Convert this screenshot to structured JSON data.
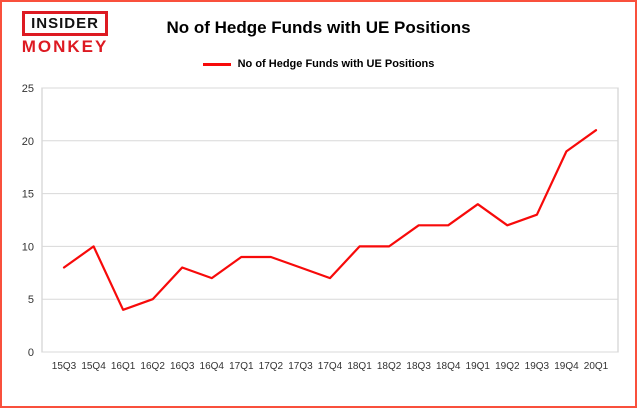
{
  "brand": {
    "line1": "INSIDER",
    "line2": "MONKEY"
  },
  "header": {
    "title": "No of Hedge Funds with UE Positions"
  },
  "legend": {
    "label": "No of Hedge Funds with UE Positions"
  },
  "colors": {
    "frame_border": "#f9503c",
    "line": "#f70a0a",
    "grid": "#d8d8d8",
    "plot_border": "#c8c8c8",
    "axis_text": "#333333",
    "logo_red": "#dd1a22"
  },
  "chart_data": {
    "type": "line",
    "title": "No of Hedge Funds with UE Positions",
    "categories": [
      "15Q3",
      "15Q4",
      "16Q1",
      "16Q2",
      "16Q3",
      "16Q4",
      "17Q1",
      "17Q2",
      "17Q3",
      "17Q4",
      "18Q1",
      "18Q2",
      "18Q3",
      "18Q4",
      "19Q1",
      "19Q2",
      "19Q3",
      "19Q4",
      "20Q1"
    ],
    "values": [
      8,
      10,
      4,
      5,
      8,
      7,
      9,
      9,
      8,
      7,
      10,
      10,
      12,
      12,
      14,
      12,
      13,
      19,
      21
    ],
    "xlabel": "",
    "ylabel": "",
    "ylim": [
      0,
      25
    ],
    "yticks": [
      0,
      5,
      10,
      15,
      20,
      25
    ],
    "grid": true,
    "legend_position": "top",
    "series_color": "#f70a0a"
  }
}
